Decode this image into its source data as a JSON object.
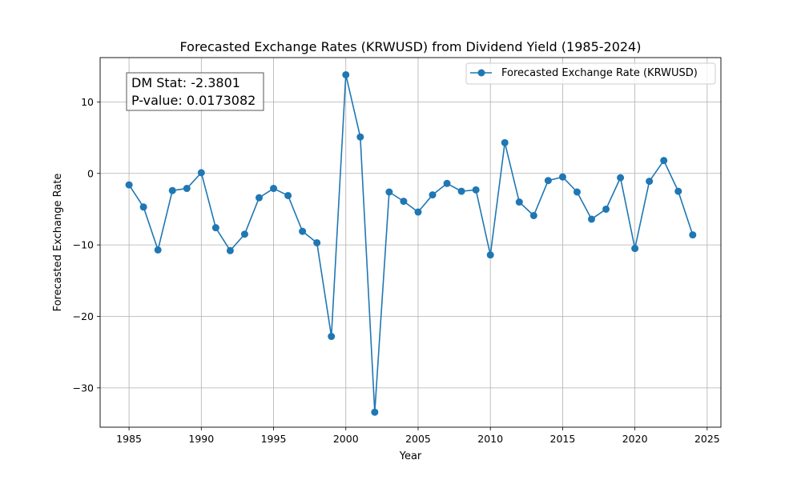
{
  "chart_data": {
    "type": "line",
    "title": "Forecasted Exchange Rates (KRWUSD) from Dividend Yield (1985-2024)",
    "xlabel": "Year",
    "ylabel": "Forecasted Exchange Rate",
    "xlim": [
      1983.0,
      2025.95
    ],
    "ylim": [
      -35.5,
      16.2
    ],
    "xticks": [
      1985,
      1990,
      1995,
      2000,
      2005,
      2010,
      2015,
      2020,
      2025
    ],
    "yticks": [
      -30,
      -20,
      -10,
      0,
      10
    ],
    "ytick_labels": [
      "−30",
      "−20",
      "−10",
      "0",
      "10"
    ],
    "grid": true,
    "legend_position": "top-right",
    "series": [
      {
        "name": "Forecasted Exchange Rate (KRWUSD)",
        "color": "#1f77b4",
        "marker": "circle",
        "x": [
          1985,
          1986,
          1987,
          1988,
          1989,
          1990,
          1991,
          1992,
          1993,
          1994,
          1995,
          1996,
          1997,
          1998,
          1999,
          2000,
          2001,
          2002,
          2003,
          2004,
          2005,
          2006,
          2007,
          2008,
          2009,
          2010,
          2011,
          2012,
          2013,
          2014,
          2015,
          2016,
          2017,
          2018,
          2019,
          2020,
          2021,
          2022,
          2023,
          2024
        ],
        "y": [
          -1.6,
          -4.7,
          -10.7,
          -2.4,
          -2.1,
          0.1,
          -7.6,
          -10.8,
          -8.5,
          -3.4,
          -2.1,
          -3.1,
          -8.1,
          -9.7,
          -22.8,
          13.8,
          5.1,
          -33.4,
          -2.6,
          -3.9,
          -5.4,
          -3.0,
          -1.4,
          -2.5,
          -2.3,
          -11.4,
          4.3,
          -4.0,
          -5.9,
          -1.0,
          -0.5,
          -2.6,
          -6.4,
          -5.0,
          -0.6,
          -10.5,
          -1.1,
          1.8,
          -2.5,
          -8.6
        ]
      }
    ],
    "annotation": {
      "line1": "DM Stat: -2.3801",
      "line2": "P-value: 0.0173082"
    }
  }
}
